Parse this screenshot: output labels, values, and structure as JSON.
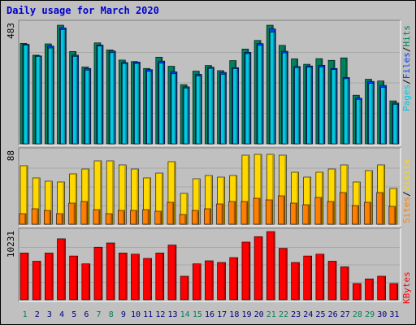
{
  "title": "Daily usage for March 2020",
  "colors": {
    "hits": "#00805c",
    "files": "#0040ff",
    "pages": "#00c8e0",
    "sites": "#ff8000",
    "visits": "#ffd800",
    "kbytes": "#ff0000",
    "background": "#c0c0c0",
    "plot": "#c0c0c0",
    "weekday_label": "#000080",
    "weekend_label": "#00805c"
  },
  "chart_data": [
    {
      "type": "bar",
      "name": "hits-files-pages",
      "x": [
        1,
        2,
        3,
        4,
        5,
        6,
        7,
        8,
        9,
        10,
        11,
        12,
        13,
        14,
        15,
        16,
        17,
        18,
        19,
        20,
        21,
        22,
        23,
        24,
        25,
        26,
        27,
        28,
        29,
        30,
        31
      ],
      "max_label": "483",
      "ylim": [
        0,
        483
      ],
      "series": [
        {
          "name": "Hits",
          "values": [
            409,
            361,
            407,
            483,
            376,
            313,
            411,
            382,
            341,
            335,
            307,
            353,
            316,
            241,
            296,
            319,
            298,
            339,
            386,
            421,
            483,
            401,
            346,
            324,
            347,
            340,
            350,
            198,
            263,
            256,
            175
          ]
        },
        {
          "name": "Files",
          "values": [
            405,
            358,
            398,
            472,
            361,
            307,
            402,
            378,
            331,
            333,
            302,
            337,
            293,
            232,
            283,
            312,
            291,
            310,
            373,
            408,
            468,
            377,
            315,
            317,
            320,
            307,
            270,
            186,
            254,
            238,
            166
          ]
        },
        {
          "name": "Pages",
          "values": [
            402,
            356,
            390,
            465,
            356,
            300,
            398,
            371,
            327,
            327,
            295,
            328,
            285,
            227,
            276,
            307,
            283,
            306,
            367,
            401,
            455,
            370,
            310,
            312,
            313,
            302,
            265,
            181,
            246,
            230,
            161
          ]
        }
      ],
      "legend": [
        "Pages",
        "Files",
        "Hits"
      ]
    },
    {
      "type": "bar",
      "name": "sites-visits",
      "x": [
        1,
        2,
        3,
        4,
        5,
        6,
        7,
        8,
        9,
        10,
        11,
        12,
        13,
        14,
        15,
        16,
        17,
        18,
        19,
        20,
        21,
        22,
        23,
        24,
        25,
        26,
        27,
        28,
        29,
        30,
        31
      ],
      "max_label": "88",
      "ylim": [
        0,
        88
      ],
      "series": [
        {
          "name": "Visits",
          "values": [
            72,
            57,
            53,
            52,
            62,
            68,
            78,
            78,
            73,
            68,
            57,
            63,
            77,
            38,
            56,
            60,
            58,
            60,
            85,
            86,
            86,
            85,
            64,
            58,
            64,
            68,
            73,
            52,
            66,
            73,
            44
          ]
        },
        {
          "name": "Sites",
          "values": [
            13,
            19,
            17,
            13,
            26,
            28,
            18,
            13,
            17,
            17,
            18,
            16,
            27,
            12,
            17,
            19,
            25,
            28,
            28,
            32,
            30,
            35,
            26,
            24,
            33,
            28,
            39,
            23,
            27,
            39,
            22
          ]
        }
      ],
      "legend": [
        "Sites",
        "Visits"
      ]
    },
    {
      "type": "bar",
      "name": "kbytes",
      "x": [
        1,
        2,
        3,
        4,
        5,
        6,
        7,
        8,
        9,
        10,
        11,
        12,
        13,
        14,
        15,
        16,
        17,
        18,
        19,
        20,
        21,
        22,
        23,
        24,
        25,
        26,
        27,
        28,
        29,
        30,
        31
      ],
      "max_label": "10231",
      "ylim": [
        0,
        10231
      ],
      "series": [
        {
          "name": "KBytes",
          "values": [
            7016,
            5788,
            7016,
            9149,
            6568,
            5393,
            7891,
            8528,
            7016,
            6843,
            6206,
            7016,
            8212,
            3537,
            5393,
            5851,
            5600,
            6331,
            8655,
            9468,
            10231,
            7725,
            5600,
            6568,
            6843,
            5788,
            4946,
            2443,
            3137,
            3537,
            2443
          ]
        }
      ],
      "legend": [
        "KBytes"
      ]
    }
  ],
  "legend_separator": "/"
}
